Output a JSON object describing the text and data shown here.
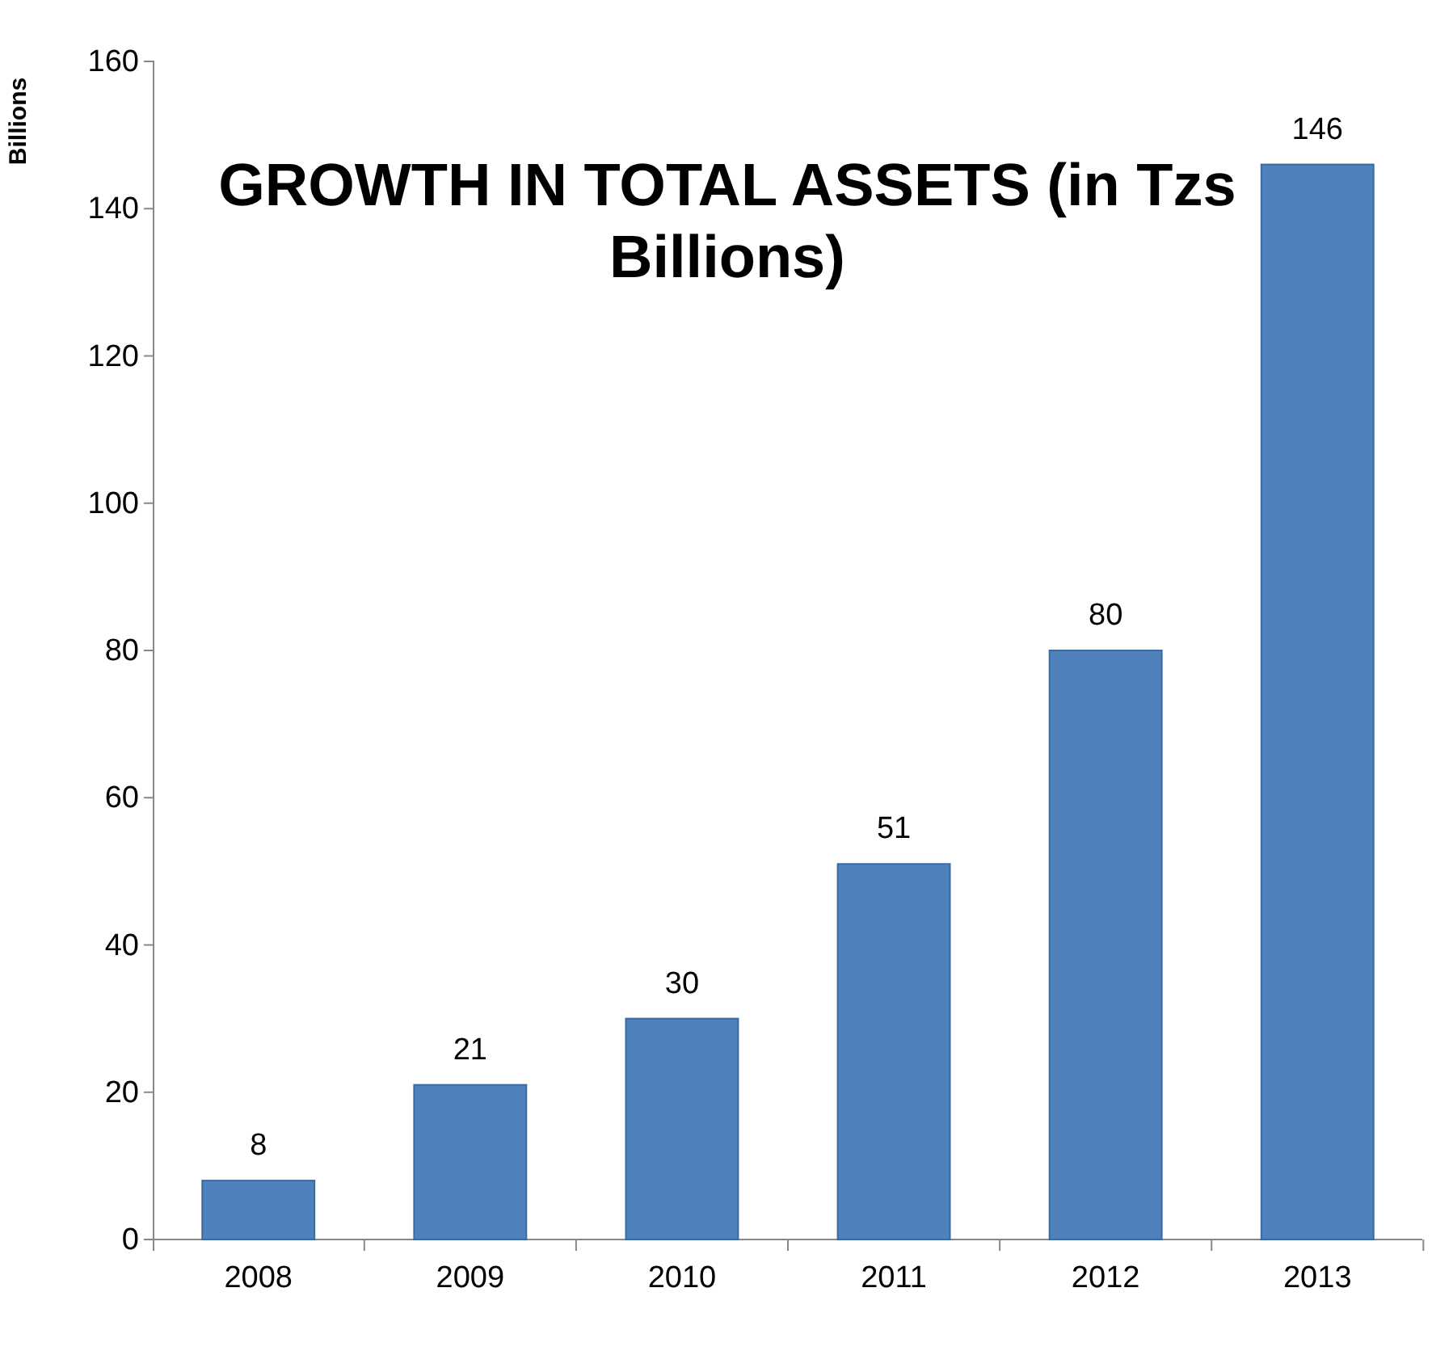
{
  "chart_data": {
    "type": "bar",
    "title": "GROWTH IN TOTAL ASSETS (in Tzs Billions)",
    "ylabel": "Billions",
    "categories": [
      "2008",
      "2009",
      "2010",
      "2011",
      "2012",
      "2013"
    ],
    "values": [
      8,
      21,
      30,
      51,
      80,
      146
    ],
    "color": "#4f81bd",
    "ylim": [
      0,
      160
    ],
    "yticks": [
      0,
      20,
      40,
      60,
      80,
      100,
      120,
      140,
      160
    ],
    "grid": false,
    "data_labels": true
  }
}
